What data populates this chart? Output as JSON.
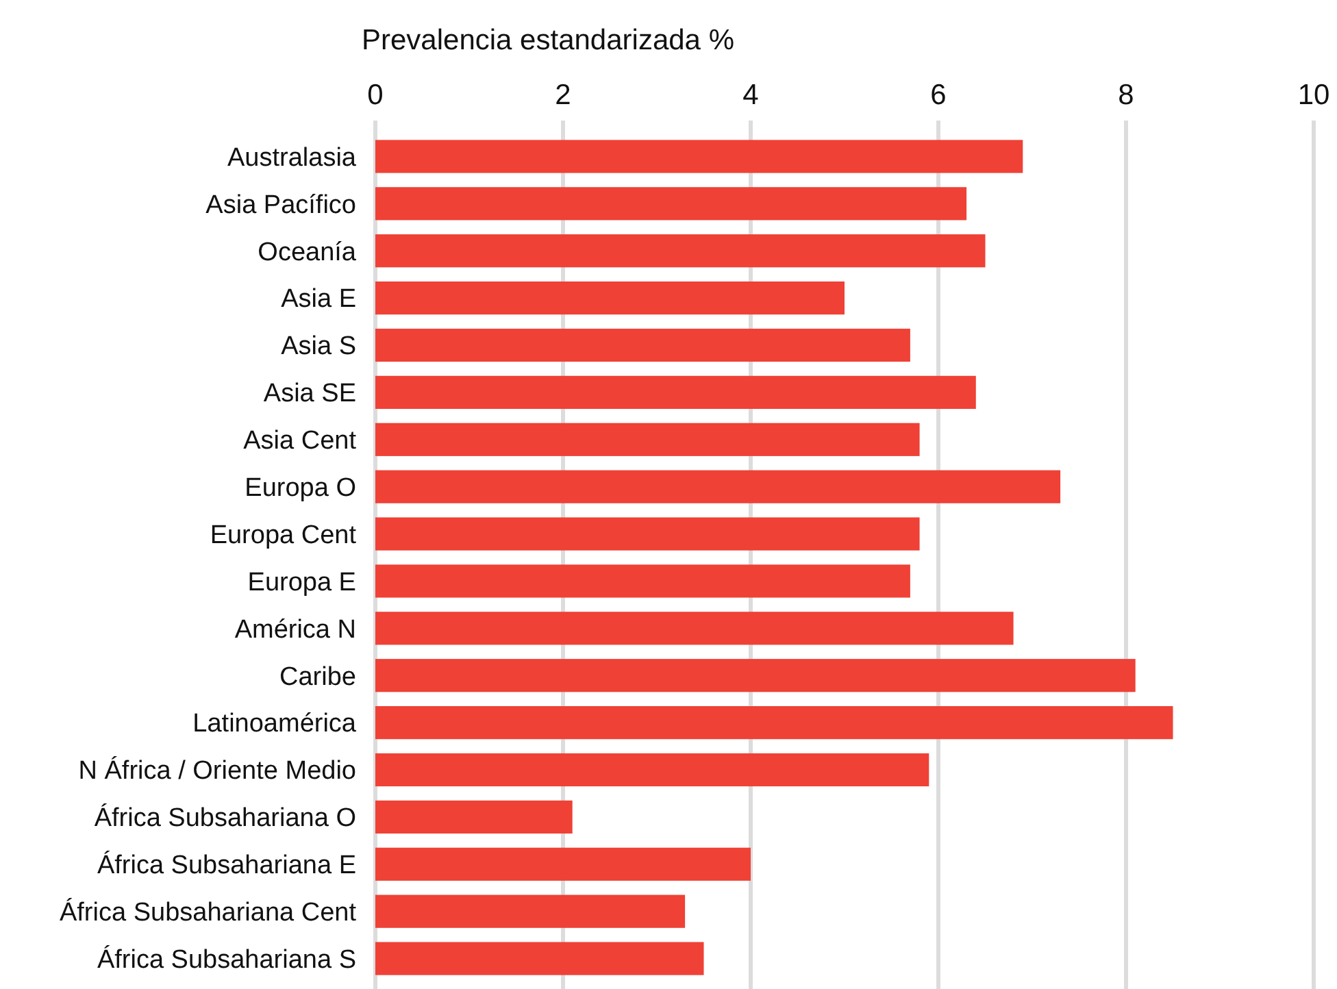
{
  "chart_data": {
    "type": "bar",
    "orientation": "horizontal",
    "xlabel": "Prevalencia estandarizada %",
    "categories": [
      "Australasia",
      "Asia Pacífico",
      "Oceanía",
      "Asia E",
      "Asia S",
      "Asia SE",
      "Asia Cent",
      "Europa O",
      "Europa Cent",
      "Europa E",
      "América N",
      "Caribe",
      "Latinoamérica",
      "N África / Oriente Medio",
      "África Subsahariana O",
      "África Subsahariana E",
      "África Subsahariana Cent",
      "África Subsahariana S"
    ],
    "values": [
      6.9,
      6.3,
      6.5,
      5.0,
      5.7,
      6.4,
      5.8,
      7.3,
      5.8,
      5.7,
      6.8,
      8.1,
      8.5,
      5.9,
      2.1,
      4.0,
      3.3,
      3.5
    ],
    "color": "#ef4136",
    "xlim": [
      0,
      10
    ],
    "xticks": [
      0,
      2,
      4,
      6,
      8,
      10
    ],
    "grid": "x"
  }
}
